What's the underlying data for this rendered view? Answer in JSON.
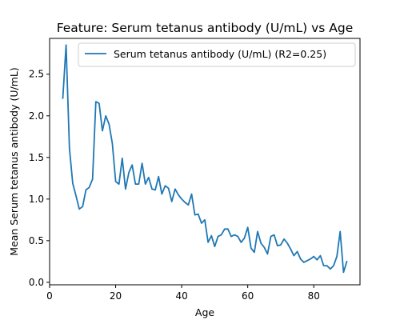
{
  "chart_data": {
    "type": "line",
    "title": "Feature: Serum tetanus antibody (U/mL) vs Age",
    "xlabel": "Age",
    "ylabel": "Mean Serum tetanus antibody (U/mL)",
    "xlim": [
      0,
      94
    ],
    "ylim": [
      -0.03,
      2.93
    ],
    "xticks": [
      0,
      20,
      40,
      60,
      80
    ],
    "yticks": [
      0.0,
      0.5,
      1.0,
      1.5,
      2.0,
      2.5
    ],
    "xtick_labels": [
      "0",
      "20",
      "40",
      "60",
      "80"
    ],
    "ytick_labels": [
      "0.0",
      "0.5",
      "1.0",
      "1.5",
      "2.0",
      "2.5"
    ],
    "grid": false,
    "legend_position": "top-right",
    "series": [
      {
        "name": "Serum tetanus antibody (U/mL) (R2=0.25)",
        "color": "#1f77b4",
        "x": [
          4,
          5,
          6,
          7,
          8,
          9,
          10,
          11,
          12,
          13,
          14,
          15,
          16,
          17,
          18,
          19,
          20,
          21,
          22,
          23,
          24,
          25,
          26,
          27,
          28,
          29,
          30,
          31,
          32,
          33,
          34,
          35,
          36,
          37,
          38,
          39,
          40,
          41,
          42,
          43,
          44,
          45,
          46,
          47,
          48,
          49,
          50,
          51,
          52,
          53,
          54,
          55,
          56,
          57,
          58,
          59,
          60,
          61,
          62,
          63,
          64,
          65,
          66,
          67,
          68,
          69,
          70,
          71,
          72,
          73,
          74,
          75,
          76,
          77,
          78,
          79,
          80,
          81,
          82,
          83,
          84,
          85,
          86,
          87,
          88,
          89,
          90
        ],
        "y": [
          2.21,
          2.85,
          1.61,
          1.19,
          1.04,
          0.88,
          0.91,
          1.11,
          1.14,
          1.24,
          2.17,
          2.15,
          1.82,
          2.0,
          1.9,
          1.67,
          1.21,
          1.18,
          1.49,
          1.12,
          1.32,
          1.41,
          1.18,
          1.18,
          1.43,
          1.18,
          1.26,
          1.12,
          1.11,
          1.27,
          1.06,
          1.16,
          1.13,
          0.97,
          1.12,
          1.05,
          1.0,
          0.96,
          0.93,
          1.06,
          0.81,
          0.82,
          0.71,
          0.75,
          0.48,
          0.56,
          0.43,
          0.55,
          0.57,
          0.64,
          0.64,
          0.55,
          0.57,
          0.55,
          0.48,
          0.53,
          0.66,
          0.41,
          0.36,
          0.61,
          0.47,
          0.42,
          0.34,
          0.55,
          0.57,
          0.44,
          0.45,
          0.52,
          0.47,
          0.4,
          0.32,
          0.37,
          0.28,
          0.24,
          0.26,
          0.28,
          0.31,
          0.27,
          0.32,
          0.2,
          0.2,
          0.16,
          0.2,
          0.31,
          0.61,
          0.12,
          0.25
        ]
      }
    ]
  }
}
